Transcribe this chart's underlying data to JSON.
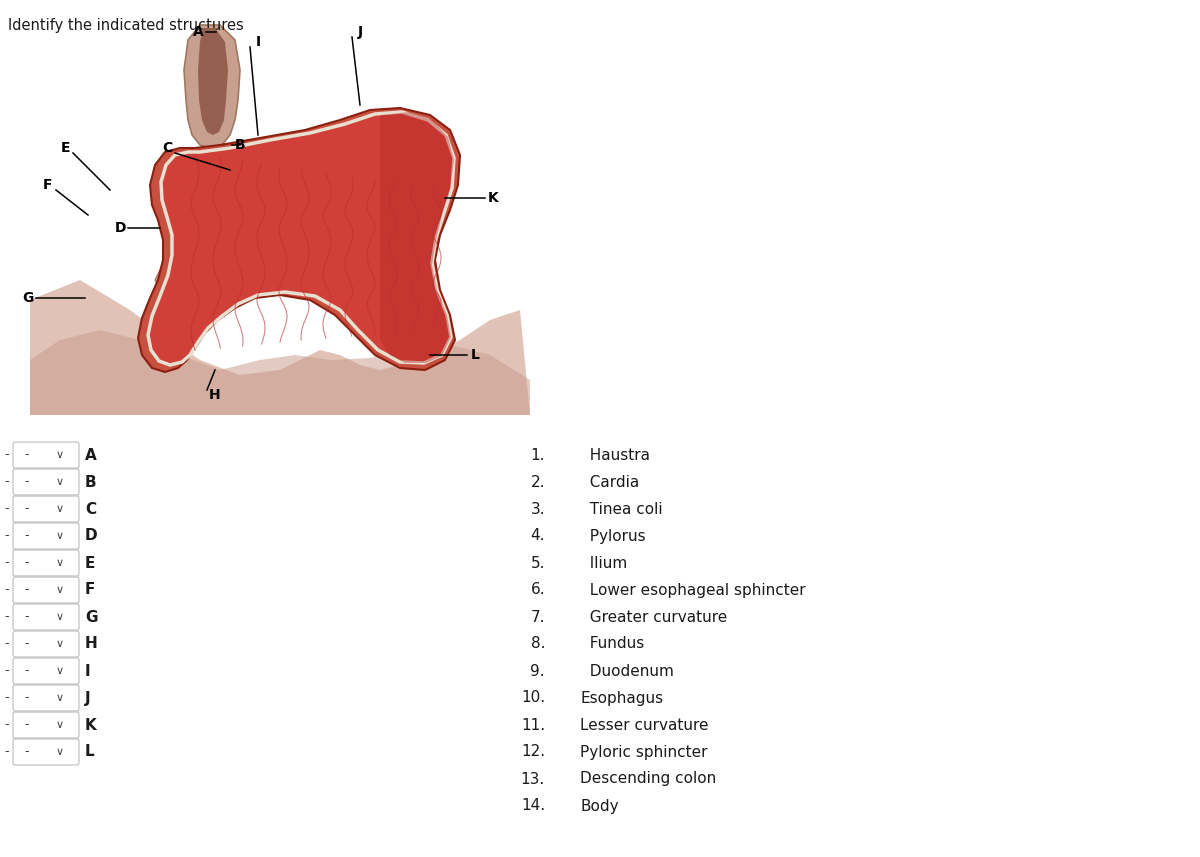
{
  "title": "Identify the indicated structures",
  "title_fontsize": 10.5,
  "bg_color": "#ffffff",
  "labels_left": [
    "A",
    "B",
    "C",
    "D",
    "E",
    "F",
    "G",
    "H",
    "I",
    "J",
    "K",
    "L"
  ],
  "numbered_items": [
    [
      "1.",
      "  Haustra"
    ],
    [
      "2.",
      "  Cardia"
    ],
    [
      "3.",
      "  Tinea coli"
    ],
    [
      "4.",
      "  Pylorus"
    ],
    [
      "5.",
      "  Ilium"
    ],
    [
      "6.",
      "  Lower esophageal sphincter"
    ],
    [
      "7.",
      "  Greater curvature"
    ],
    [
      "8.",
      "  Fundus"
    ],
    [
      "9.",
      "  Duodenum"
    ],
    [
      "10.",
      "Esophagus"
    ],
    [
      "11.",
      "Lesser curvature"
    ],
    [
      "12.",
      "Pyloric sphincter"
    ],
    [
      "13.",
      "Descending colon"
    ],
    [
      "14.",
      "Body"
    ]
  ],
  "text_color": "#1a1a1a"
}
